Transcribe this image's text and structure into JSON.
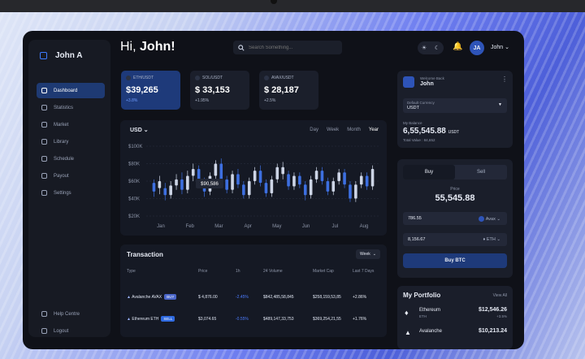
{
  "header": {
    "greeting": "Hi,",
    "name": "John!",
    "search_placeholder": "Search Something...",
    "user_initials": "JA",
    "user_name": "John"
  },
  "sidebar": {
    "brand": "John A",
    "items": [
      {
        "label": "Dashboard",
        "icon": "dashboard-icon"
      },
      {
        "label": "Statistics",
        "icon": "statistics-icon"
      },
      {
        "label": "Market",
        "icon": "market-icon"
      },
      {
        "label": "Library",
        "icon": "library-icon"
      },
      {
        "label": "Schedule",
        "icon": "schedule-icon"
      },
      {
        "label": "Payout",
        "icon": "payout-icon"
      },
      {
        "label": "Settings",
        "icon": "settings-icon"
      }
    ],
    "bottom": [
      {
        "label": "Help Centre",
        "icon": "help-icon"
      },
      {
        "label": "Logout",
        "icon": "logout-icon"
      }
    ]
  },
  "tickers": [
    {
      "pair": "ETH/USDT",
      "price": "$39,265",
      "change": "+3.8%"
    },
    {
      "pair": "SOL/USDT",
      "price": "$ 33,153",
      "change": "+1.95%"
    },
    {
      "pair": "AVAX/USDT",
      "price": "$ 28,187",
      "change": "+2.5%"
    }
  ],
  "chart": {
    "currency": "USD",
    "periods": [
      "Day",
      "Week",
      "Month",
      "Year"
    ],
    "active_period": "Year",
    "tooltip": "$90,586"
  },
  "chart_data": {
    "type": "candlestick",
    "x": [
      "Jan",
      "Feb",
      "Mar",
      "Apr",
      "May",
      "Jun",
      "Jul",
      "Aug"
    ],
    "y_ticks": [
      "$100K",
      "$80K",
      "$60K",
      "$40K",
      "$20K"
    ],
    "ylim": [
      20000,
      100000
    ],
    "candles": [
      [
        48,
        58,
        42,
        62,
        "b"
      ],
      [
        60,
        52,
        45,
        66,
        "w"
      ],
      [
        52,
        44,
        38,
        58,
        "b"
      ],
      [
        44,
        55,
        40,
        60,
        "w"
      ],
      [
        55,
        62,
        50,
        68,
        "w"
      ],
      [
        62,
        50,
        45,
        70,
        "b"
      ],
      [
        50,
        66,
        46,
        72,
        "w"
      ],
      [
        66,
        74,
        60,
        80,
        "w"
      ],
      [
        74,
        60,
        55,
        78,
        "b"
      ],
      [
        60,
        48,
        42,
        64,
        "b"
      ],
      [
        48,
        66,
        44,
        70,
        "w"
      ],
      [
        66,
        80,
        62,
        84,
        "w"
      ],
      [
        80,
        62,
        58,
        86,
        "b"
      ],
      [
        62,
        50,
        46,
        66,
        "b"
      ],
      [
        50,
        68,
        46,
        72,
        "w"
      ],
      [
        68,
        56,
        52,
        74,
        "b"
      ],
      [
        56,
        44,
        40,
        60,
        "b"
      ],
      [
        44,
        60,
        40,
        64,
        "w"
      ],
      [
        60,
        72,
        56,
        76,
        "w"
      ],
      [
        72,
        58,
        54,
        78,
        "b"
      ],
      [
        58,
        46,
        42,
        62,
        "b"
      ],
      [
        46,
        62,
        42,
        66,
        "w"
      ],
      [
        62,
        76,
        58,
        80,
        "w"
      ],
      [
        76,
        68,
        62,
        82,
        "w"
      ],
      [
        68,
        54,
        50,
        72,
        "b"
      ],
      [
        54,
        66,
        50,
        70,
        "w"
      ],
      [
        66,
        56,
        52,
        70,
        "b"
      ],
      [
        56,
        44,
        38,
        60,
        "b"
      ],
      [
        44,
        62,
        40,
        66,
        "w"
      ],
      [
        62,
        72,
        58,
        76,
        "w"
      ],
      [
        72,
        60,
        56,
        76,
        "b"
      ],
      [
        60,
        48,
        44,
        64,
        "b"
      ],
      [
        48,
        60,
        44,
        64,
        "w"
      ],
      [
        60,
        70,
        56,
        74,
        "w"
      ],
      [
        70,
        56,
        52,
        74,
        "b"
      ],
      [
        56,
        40,
        36,
        60,
        "b"
      ],
      [
        40,
        56,
        36,
        60,
        "w"
      ],
      [
        56,
        66,
        52,
        70,
        "w"
      ],
      [
        66,
        54,
        50,
        70,
        "b"
      ],
      [
        54,
        74,
        50,
        78,
        "w"
      ]
    ]
  },
  "transactions": {
    "title": "Transaction",
    "filter": "Week",
    "columns": [
      "Type",
      "Price",
      "1h",
      "24 Volume",
      "Market Cap",
      "Last 7 Days"
    ],
    "rows": [
      {
        "name": "Avalanche AVAX",
        "badge": "BUY",
        "badge_color": "#4a66c9",
        "price": "$ 4,876.00",
        "h1": "-2.45%",
        "h1_color": "#4c7cff",
        "volume": "$842,485,58,845",
        "cap": "$258,159,53,85",
        "d7": "+2.86%",
        "d7_color": "#e4e8f2"
      },
      {
        "name": "Ethereum ETH",
        "badge": "SELL",
        "badge_color": "#2f6ae0",
        "price": "$3,074.65",
        "h1": "-0.55%",
        "h1_color": "#4c7cff",
        "volume": "$489,147,33,753",
        "cap": "$369,254,21,55",
        "d7": "+1.76%",
        "d7_color": "#e4e8f2"
      }
    ]
  },
  "account": {
    "welcome": "Welcome Back",
    "name": "John",
    "currency_label": "Default Currency",
    "currency": "USDT",
    "balance_label": "My Balance",
    "balance": "6,55,545.88",
    "balance_unit": "USDT",
    "total_value": "Total Value : 84,652"
  },
  "trade": {
    "tabs": [
      "Buy",
      "Sell"
    ],
    "price_label": "Price",
    "price": "55,545.88",
    "amount1": "786.55",
    "asset1": "Avax",
    "amount2": "8,156.67",
    "asset2": "ETH",
    "button": "Buy BTC"
  },
  "portfolio": {
    "title": "My Portfolio",
    "view_all": "View All",
    "items": [
      {
        "name": "Ethereum",
        "symbol": "ETH",
        "value": "$12,546.26",
        "change": "+3.5%"
      },
      {
        "name": "Avalanche",
        "symbol": "",
        "value": "$10,213.24",
        "change": ""
      }
    ]
  }
}
